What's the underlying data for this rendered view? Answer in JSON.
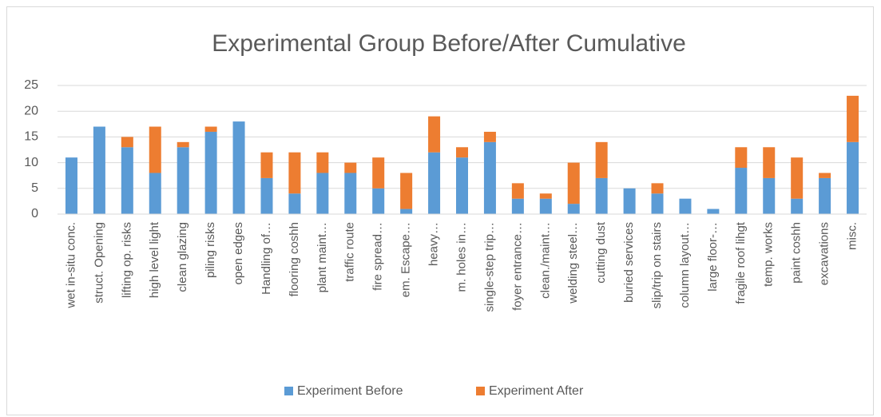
{
  "chart_data": {
    "type": "stacked_bar",
    "title": "Experimental Group Before/After Cumulative",
    "categories": [
      "wet in-situ conc.",
      "struct. Opening",
      "lifting op. risks",
      "high level light",
      "clean glazing",
      "piling risks",
      "open edges",
      "Handling of…",
      "flooring coshh",
      "plant maint…",
      "traffic route",
      "fire spread…",
      "em. Escape…",
      "heavy…",
      "m. holes in…",
      "single-step trip…",
      "foyer entrance…",
      "clean./maint…",
      "welding steel…",
      "cutting dust",
      "buried services",
      "slip/trip on stairs",
      "column layout…",
      "large floor-…",
      "fragile roof lihgt",
      "temp. works",
      "paint coshh",
      "excavations",
      "misc."
    ],
    "series": [
      {
        "name": "Experiment Before",
        "color": "#5b9bd5",
        "values": [
          11,
          17,
          13,
          8,
          13,
          16,
          18,
          7,
          4,
          8,
          8,
          5,
          1,
          12,
          11,
          14,
          3,
          3,
          2,
          7,
          5,
          4,
          3,
          1,
          9,
          7,
          3,
          7,
          14
        ]
      },
      {
        "name": "Experiment After",
        "color": "#ed7d31",
        "values": [
          0,
          0,
          2,
          9,
          1,
          1,
          0,
          5,
          8,
          4,
          2,
          6,
          7,
          7,
          2,
          2,
          3,
          1,
          8,
          7,
          0,
          2,
          0,
          0,
          4,
          6,
          8,
          1,
          9
        ]
      }
    ],
    "ylim": [
      0,
      25
    ],
    "yticks": [
      0,
      5,
      10,
      15,
      20,
      25
    ],
    "grid": true,
    "legend": "bottom"
  }
}
